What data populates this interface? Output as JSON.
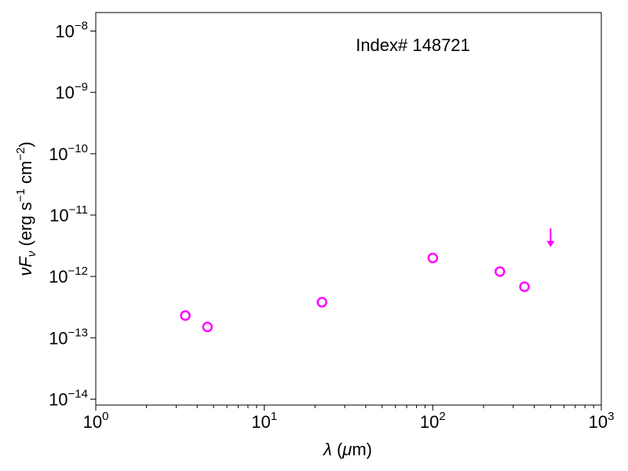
{
  "chart_data": {
    "type": "scatter",
    "xscale": "log",
    "yscale": "log",
    "xlim": [
      1,
      1000
    ],
    "ylim": [
      8e-15,
      2e-08
    ],
    "annotation": "Index# 148721",
    "xlabel": {
      "symbol": "λ",
      "rest": " (",
      "mu": "μ",
      "unit": "m)"
    },
    "ylabel": {
      "nu": "ν",
      "F": "F",
      "sub": "ν",
      "open": " (erg s",
      "exp1": "−1",
      "mid": " cm",
      "exp2": "−2",
      "close": ")"
    },
    "x_ticks": [
      {
        "value": 1,
        "base": "10",
        "exp": "0"
      },
      {
        "value": 10,
        "base": "10",
        "exp": "1"
      },
      {
        "value": 100,
        "base": "10",
        "exp": "2"
      },
      {
        "value": 1000,
        "base": "10",
        "exp": "3"
      }
    ],
    "y_ticks": [
      {
        "value": 1e-14,
        "base": "10",
        "exp": "−14"
      },
      {
        "value": 1e-13,
        "base": "10",
        "exp": "−13"
      },
      {
        "value": 1e-12,
        "base": "10",
        "exp": "−12"
      },
      {
        "value": 1e-11,
        "base": "10",
        "exp": "−11"
      },
      {
        "value": 1e-10,
        "base": "10",
        "exp": "−10"
      },
      {
        "value": 1e-09,
        "base": "10",
        "exp": "−9"
      },
      {
        "value": 1e-08,
        "base": "10",
        "exp": "−8"
      }
    ],
    "marker_color": "#ff00ff",
    "series": [
      {
        "marker": "open-circle",
        "x": [
          3.4,
          4.6,
          22,
          100,
          250,
          350
        ],
        "y": [
          2.3e-13,
          1.5e-13,
          3.8e-13,
          2e-12,
          1.2e-12,
          6.8e-13
        ]
      },
      {
        "marker": "upper-limit-arrow",
        "x": [
          500
        ],
        "y": [
          3.8e-12
        ]
      }
    ]
  }
}
